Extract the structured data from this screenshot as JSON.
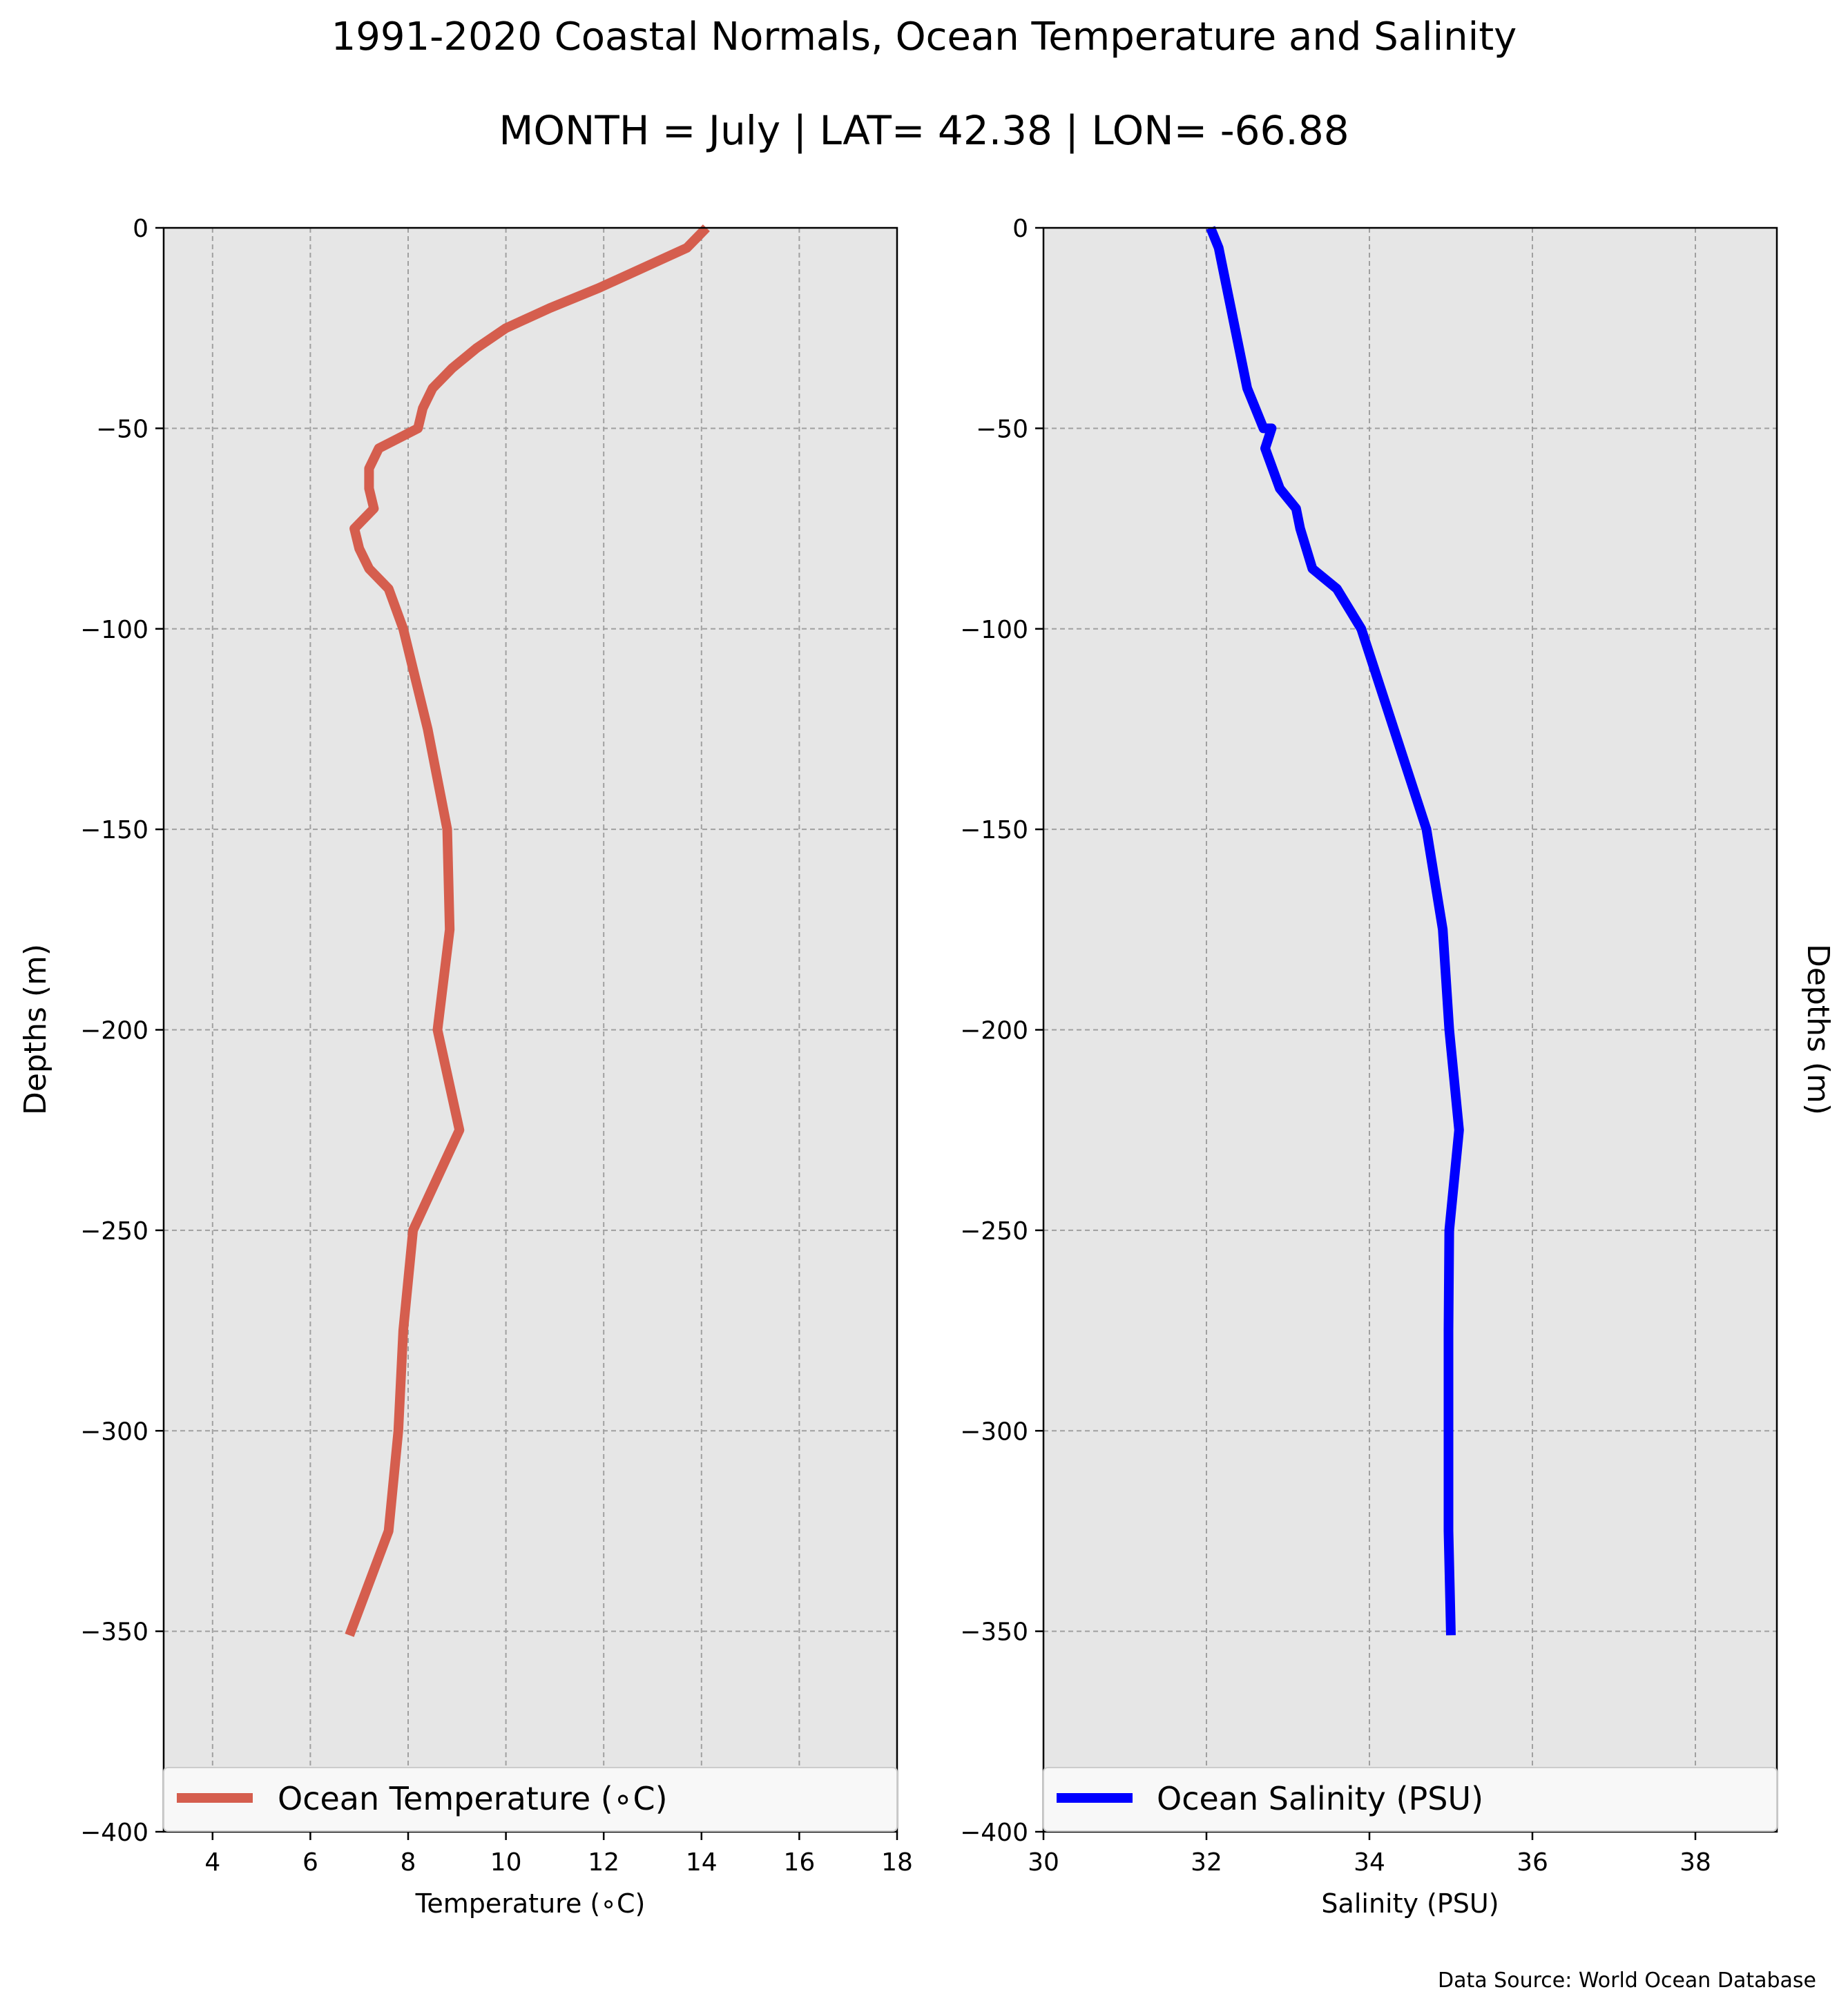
{
  "figure": {
    "title": "1991-2020 Coastal Normals, Ocean Temperature and Salinity",
    "subtitle": "MONTH = July | LAT= 42.38 | LON= -66.88",
    "source": "Data Source: World Ocean Database"
  },
  "chart_data": [
    {
      "type": "line",
      "orientation": "vertical-profile",
      "xlabel": "Temperature (∘C)",
      "ylabel": "Depths (m)",
      "xlim": [
        3,
        18
      ],
      "ylim": [
        -400,
        0
      ],
      "xticks": [
        4,
        6,
        8,
        10,
        12,
        14,
        16,
        18
      ],
      "yticks": [
        0,
        -50,
        -100,
        -150,
        -200,
        -250,
        -300,
        -350,
        -400
      ],
      "grid": true,
      "legend_position": "bottom",
      "series": [
        {
          "name": "Ocean Temperature (∘C)",
          "color": "#d55e4e",
          "x": [
            14.1,
            13.7,
            12.8,
            11.9,
            10.9,
            10.0,
            9.4,
            8.9,
            8.5,
            8.3,
            8.2,
            7.4,
            7.2,
            7.2,
            7.3,
            6.9,
            7.0,
            7.2,
            7.6,
            7.9,
            8.4,
            8.8,
            8.85,
            8.6,
            9.05,
            8.1,
            7.9,
            7.8,
            7.6,
            6.8
          ],
          "y": [
            0,
            -5,
            -10,
            -15,
            -20,
            -25,
            -30,
            -35,
            -40,
            -45,
            -50,
            -55,
            -60,
            -65,
            -70,
            -75,
            -80,
            -85,
            -90,
            -100,
            -125,
            -150,
            -175,
            -200,
            -225,
            -250,
            -275,
            -300,
            -325,
            -351
          ]
        }
      ]
    },
    {
      "type": "line",
      "orientation": "vertical-profile",
      "xlabel": "Salinity (PSU)",
      "ylabel": "Depths (m)",
      "xlim": [
        30,
        39
      ],
      "ylim": [
        -400,
        0
      ],
      "xticks": [
        30,
        32,
        34,
        36,
        38
      ],
      "yticks": [
        0,
        -50,
        -100,
        -150,
        -200,
        -250,
        -300,
        -350,
        -400
      ],
      "grid": true,
      "legend_position": "bottom",
      "series": [
        {
          "name": "Ocean Salinity (PSU)",
          "color": "#0000ff",
          "x": [
            32.05,
            32.15,
            32.2,
            32.3,
            32.4,
            32.5,
            32.6,
            32.7,
            32.8,
            32.72,
            32.9,
            33.1,
            33.15,
            33.3,
            33.6,
            33.9,
            34.3,
            34.7,
            34.9,
            34.98,
            35.1,
            34.98,
            34.97,
            34.97,
            34.97,
            35.0
          ],
          "y": [
            0,
            -5,
            -10,
            -20,
            -30,
            -40,
            -45,
            -50,
            -50,
            -55,
            -65,
            -70,
            -75,
            -85,
            -90,
            -100,
            -125,
            -150,
            -175,
            -200,
            -225,
            -250,
            -275,
            -300,
            -325,
            -351
          ]
        }
      ]
    }
  ]
}
